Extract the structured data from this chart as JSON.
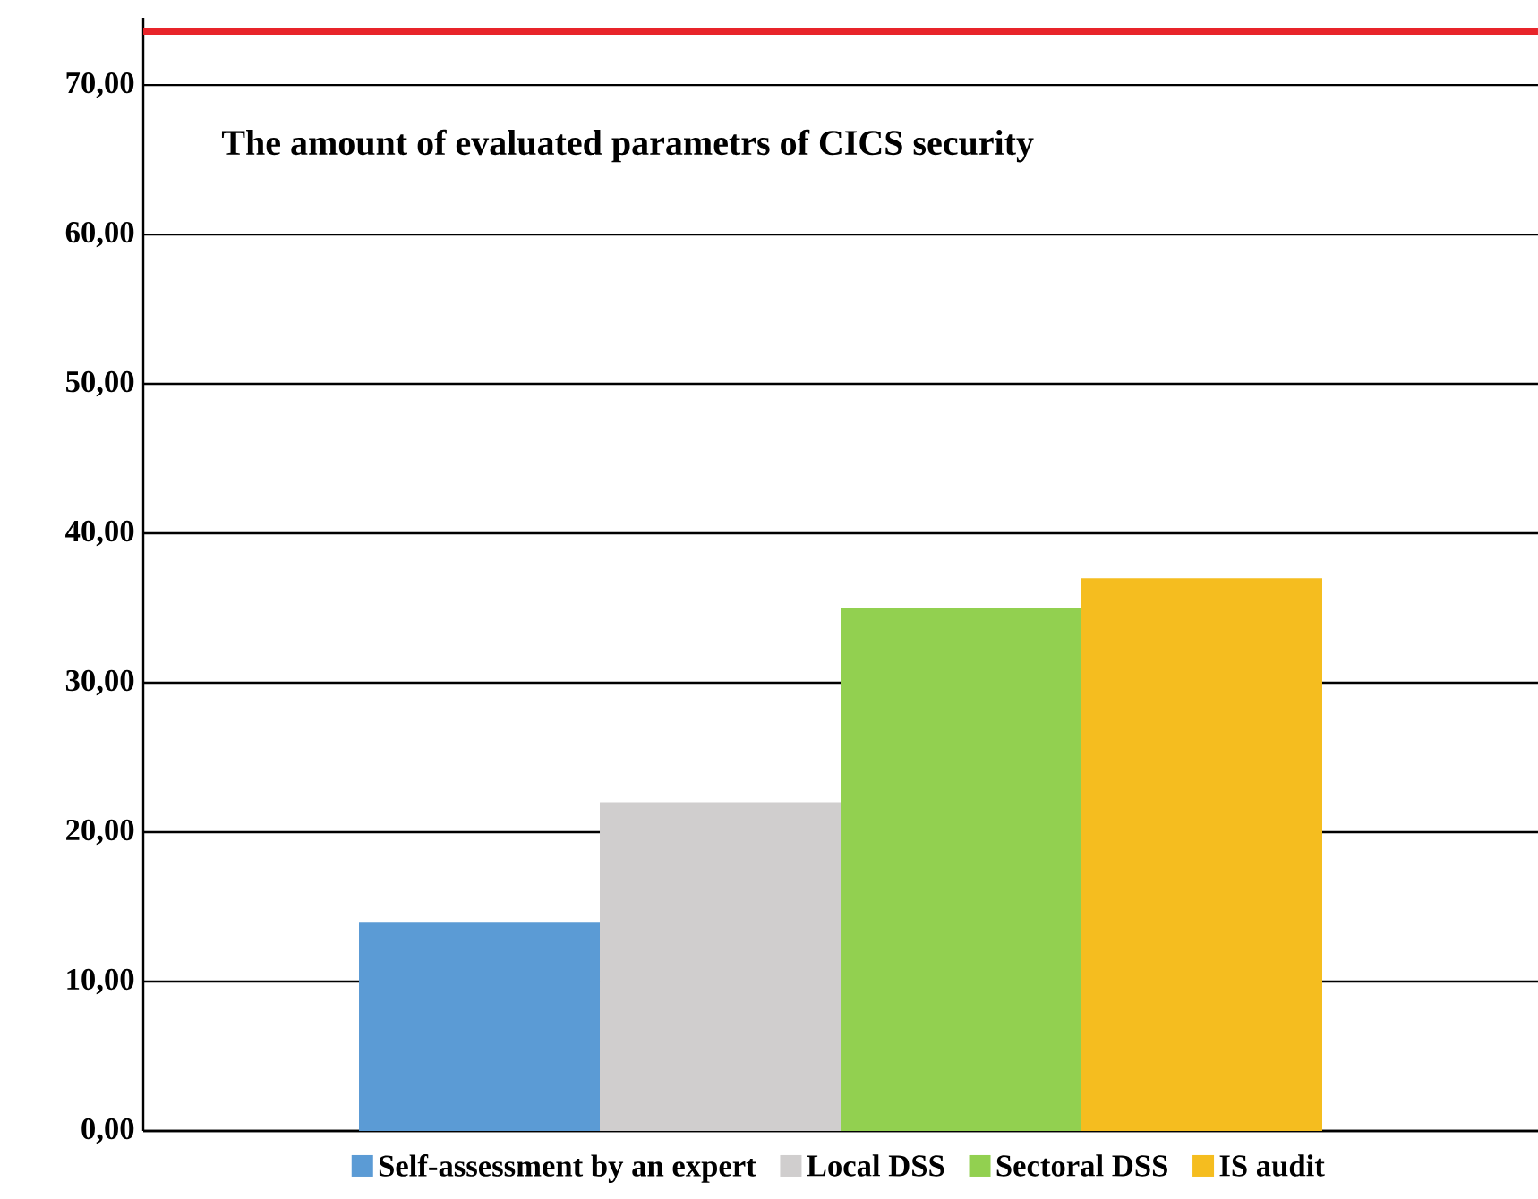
{
  "chart_data": {
    "type": "bar",
    "title": "The amount of evaluated parametrs of CICS security",
    "categories": [
      null
    ],
    "series": [
      {
        "name": "Self-assessment by an expert",
        "color": "#5b9bd5",
        "values": [
          14
        ]
      },
      {
        "name": "Local DSS",
        "color": "#d0cece",
        "values": [
          22
        ]
      },
      {
        "name": "Sectoral DSS",
        "color": "#92d050",
        "values": [
          35
        ]
      },
      {
        "name": "IS audit",
        "color": "#f5bd1f",
        "values": [
          37
        ]
      }
    ],
    "ylim": [
      0,
      74.5
    ],
    "yticks": [
      {
        "value": 0,
        "label": "0,00"
      },
      {
        "value": 10,
        "label": "10,00"
      },
      {
        "value": 20,
        "label": "20,00"
      },
      {
        "value": 30,
        "label": "30,00"
      },
      {
        "value": 40,
        "label": "40,00"
      },
      {
        "value": 50,
        "label": "50,00"
      },
      {
        "value": 60,
        "label": "60,00"
      },
      {
        "value": 70,
        "label": "70,00"
      }
    ],
    "grid": "y",
    "legend": "bottom",
    "tick_labels": "y",
    "ref_lines": [
      {
        "axis": "y",
        "value": 73.6,
        "color": "#e8242a"
      }
    ]
  }
}
